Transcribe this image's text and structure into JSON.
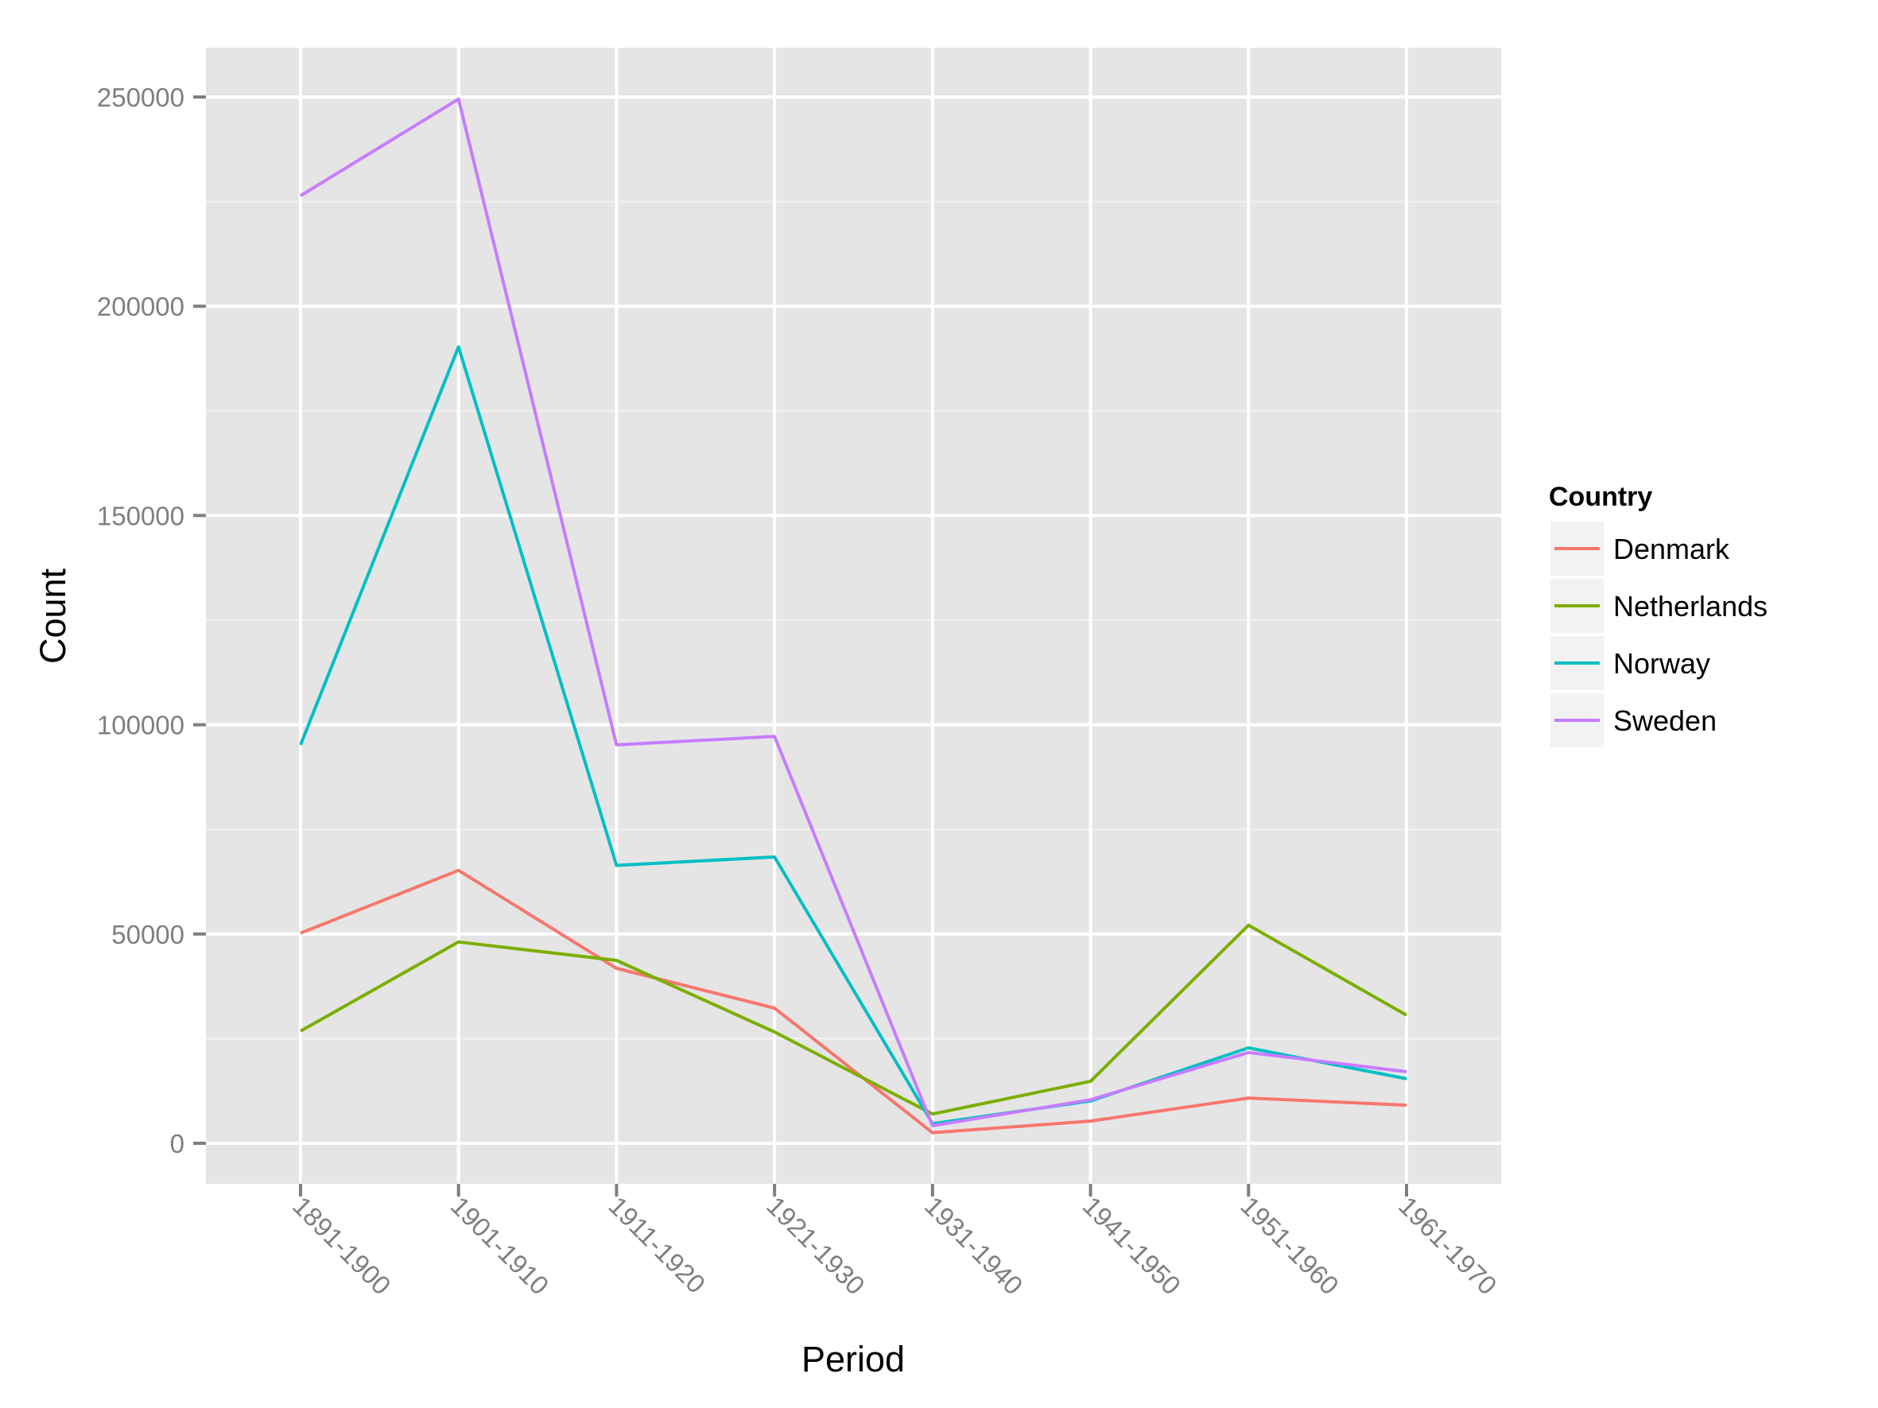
{
  "chart_data": {
    "type": "line",
    "title": "",
    "xlabel": "Period",
    "ylabel": "Count",
    "categories": [
      "1891-1900",
      "1901-1910",
      "1911-1920",
      "1921-1930",
      "1931-1940",
      "1941-1950",
      "1951-1960",
      "1961-1970"
    ],
    "ylim": [
      -10000,
      262000
    ],
    "yticks": [
      0,
      50000,
      100000,
      150000,
      200000,
      250000
    ],
    "ytick_labels": [
      "0",
      "50000",
      "100000",
      "150000",
      "200000",
      "250000"
    ],
    "grid": true,
    "legend_title": "Country",
    "legend_position": "right",
    "series": [
      {
        "name": "Denmark",
        "color": "#F8766D",
        "values": [
          50200,
          65200,
          41800,
          32300,
          2500,
          5300,
          10800,
          9100
        ]
      },
      {
        "name": "Netherlands",
        "color": "#7CAE00",
        "values": [
          26800,
          48100,
          43700,
          26600,
          7000,
          14800,
          52100,
          30600
        ]
      },
      {
        "name": "Norway",
        "color": "#00BFC4",
        "values": [
          95200,
          190300,
          66400,
          68400,
          4700,
          10100,
          22800,
          15400
        ]
      },
      {
        "name": "Sweden",
        "color": "#C77CFF",
        "values": [
          226400,
          249500,
          95200,
          97200,
          4200,
          10400,
          21700,
          17100
        ]
      }
    ]
  },
  "colors": {
    "panel_background": "#E5E5E5",
    "grid_major": "#FFFFFF",
    "grid_minor": "#F2F2F2",
    "tick_text": "#7F7F7F",
    "legend_key_background": "#F2F2F2"
  }
}
